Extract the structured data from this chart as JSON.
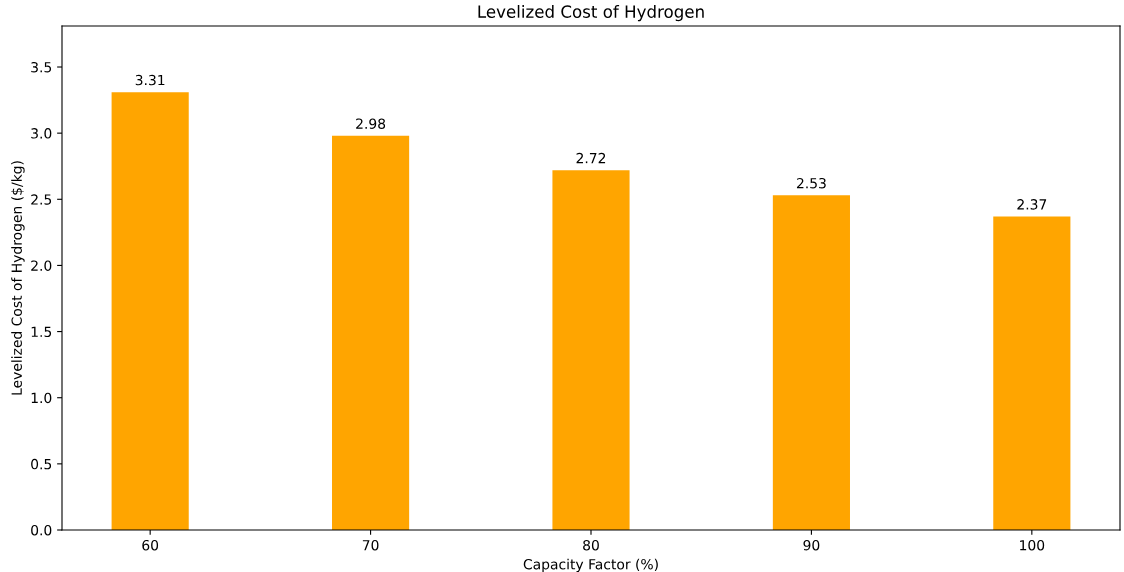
{
  "chart_data": {
    "type": "bar",
    "title": "Levelized Cost of Hydrogen",
    "xlabel": "Capacity Factor (%)",
    "ylabel": "Levelized Cost of Hydrogen ($/kg)",
    "categories": [
      "60",
      "70",
      "80",
      "90",
      "100"
    ],
    "values": [
      3.31,
      2.98,
      2.72,
      2.53,
      2.37
    ],
    "color": "#ffa500",
    "ylim": [
      0,
      3.81
    ],
    "yticks": [
      {
        "value": 0,
        "label": "0.0"
      },
      0.5,
      {
        "value": 1,
        "label": "1.0"
      },
      1.5,
      {
        "value": 2,
        "label": "2.0"
      },
      2.5,
      {
        "value": 3,
        "label": "3.0"
      },
      3.5
    ],
    "data_labels": true
  }
}
